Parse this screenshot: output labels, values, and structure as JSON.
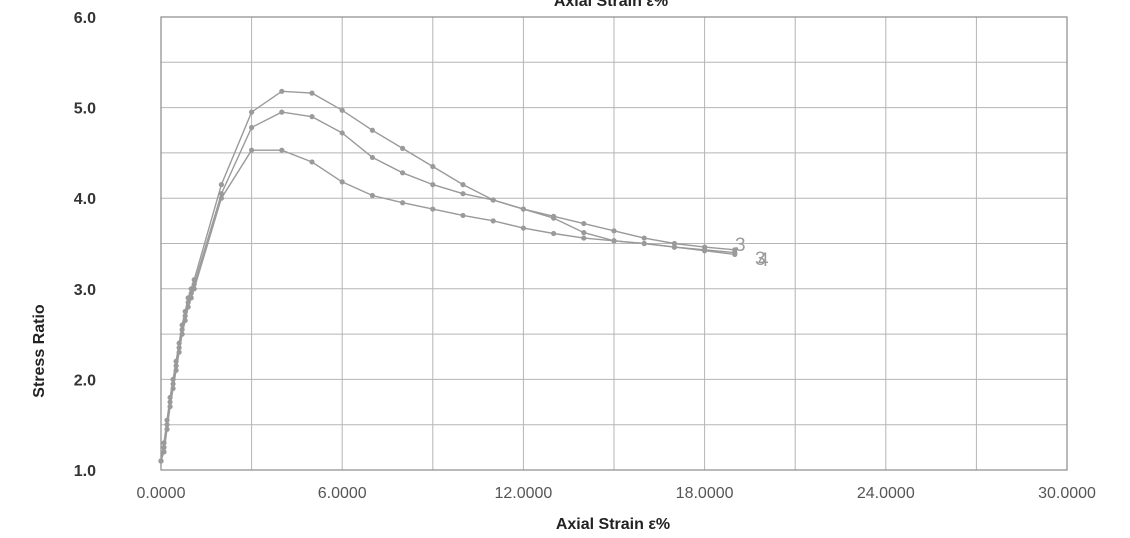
{
  "chart_data": {
    "type": "line",
    "title": "Axial Strain ε%",
    "xlabel": "Axial Strain ε%",
    "ylabel": "Stress Ratio",
    "xlim": [
      0,
      30
    ],
    "ylim": [
      1,
      6
    ],
    "xticks": [
      0,
      6,
      12,
      18,
      24,
      30
    ],
    "xtick_labels": [
      "0.0000",
      "6.0000",
      "12.0000",
      "18.0000",
      "24.0000",
      "30.0000"
    ],
    "yticks": [
      1,
      2,
      3,
      4,
      5,
      6
    ],
    "ytick_labels": [
      "1.0",
      "2.0",
      "3.0",
      "4.0",
      "5.0",
      "6.0"
    ],
    "grid": true,
    "line_color": "#9a9a9a",
    "series": [
      {
        "name": "3",
        "x": [
          0,
          0.1,
          0.2,
          0.3,
          0.4,
          0.5,
          0.6,
          0.7,
          0.8,
          0.9,
          1.0,
          1.1,
          2.0,
          3.0,
          4.0,
          5.0,
          6.0,
          7.0,
          8.0,
          9.0,
          10.0,
          11.0,
          12.0,
          13.0,
          14.0,
          15.0,
          16.0,
          17.0,
          18.0,
          19.0
        ],
        "y": [
          1.1,
          1.3,
          1.55,
          1.8,
          2.0,
          2.2,
          2.4,
          2.6,
          2.75,
          2.9,
          3.0,
          3.1,
          4.15,
          4.95,
          5.18,
          5.16,
          4.97,
          4.75,
          4.55,
          4.35,
          4.15,
          3.98,
          3.88,
          3.8,
          3.72,
          3.64,
          3.56,
          3.5,
          3.46,
          3.43
        ]
      },
      {
        "name": "4",
        "x": [
          0,
          0.1,
          0.2,
          0.3,
          0.4,
          0.5,
          0.6,
          0.7,
          0.8,
          0.9,
          1.0,
          1.1,
          2.0,
          3.0,
          4.0,
          5.0,
          6.0,
          7.0,
          8.0,
          9.0,
          10.0,
          11.0,
          12.0,
          13.0,
          14.0,
          15.0,
          16.0,
          17.0,
          18.0,
          19.0
        ],
        "y": [
          1.1,
          1.25,
          1.5,
          1.75,
          1.95,
          2.15,
          2.35,
          2.55,
          2.7,
          2.85,
          2.95,
          3.05,
          4.05,
          4.78,
          4.95,
          4.9,
          4.72,
          4.45,
          4.28,
          4.15,
          4.05,
          3.98,
          3.88,
          3.78,
          3.62,
          3.53,
          3.5,
          3.46,
          3.43,
          3.4
        ]
      },
      {
        "name": "",
        "x": [
          0,
          0.1,
          0.2,
          0.3,
          0.4,
          0.5,
          0.6,
          0.7,
          0.8,
          0.9,
          1.0,
          1.1,
          2.0,
          3.0,
          4.0,
          5.0,
          6.0,
          7.0,
          8.0,
          9.0,
          10.0,
          11.0,
          12.0,
          13.0,
          14.0,
          15.0,
          16.0,
          17.0,
          18.0,
          19.0
        ],
        "y": [
          1.1,
          1.2,
          1.45,
          1.7,
          1.9,
          2.1,
          2.3,
          2.5,
          2.65,
          2.8,
          2.9,
          3.0,
          4.0,
          4.53,
          4.53,
          4.4,
          4.18,
          4.03,
          3.95,
          3.88,
          3.81,
          3.75,
          3.67,
          3.61,
          3.56,
          3.53,
          3.5,
          3.46,
          3.42,
          3.38
        ]
      }
    ],
    "annotations": [
      "3",
      "4",
      "3"
    ]
  }
}
